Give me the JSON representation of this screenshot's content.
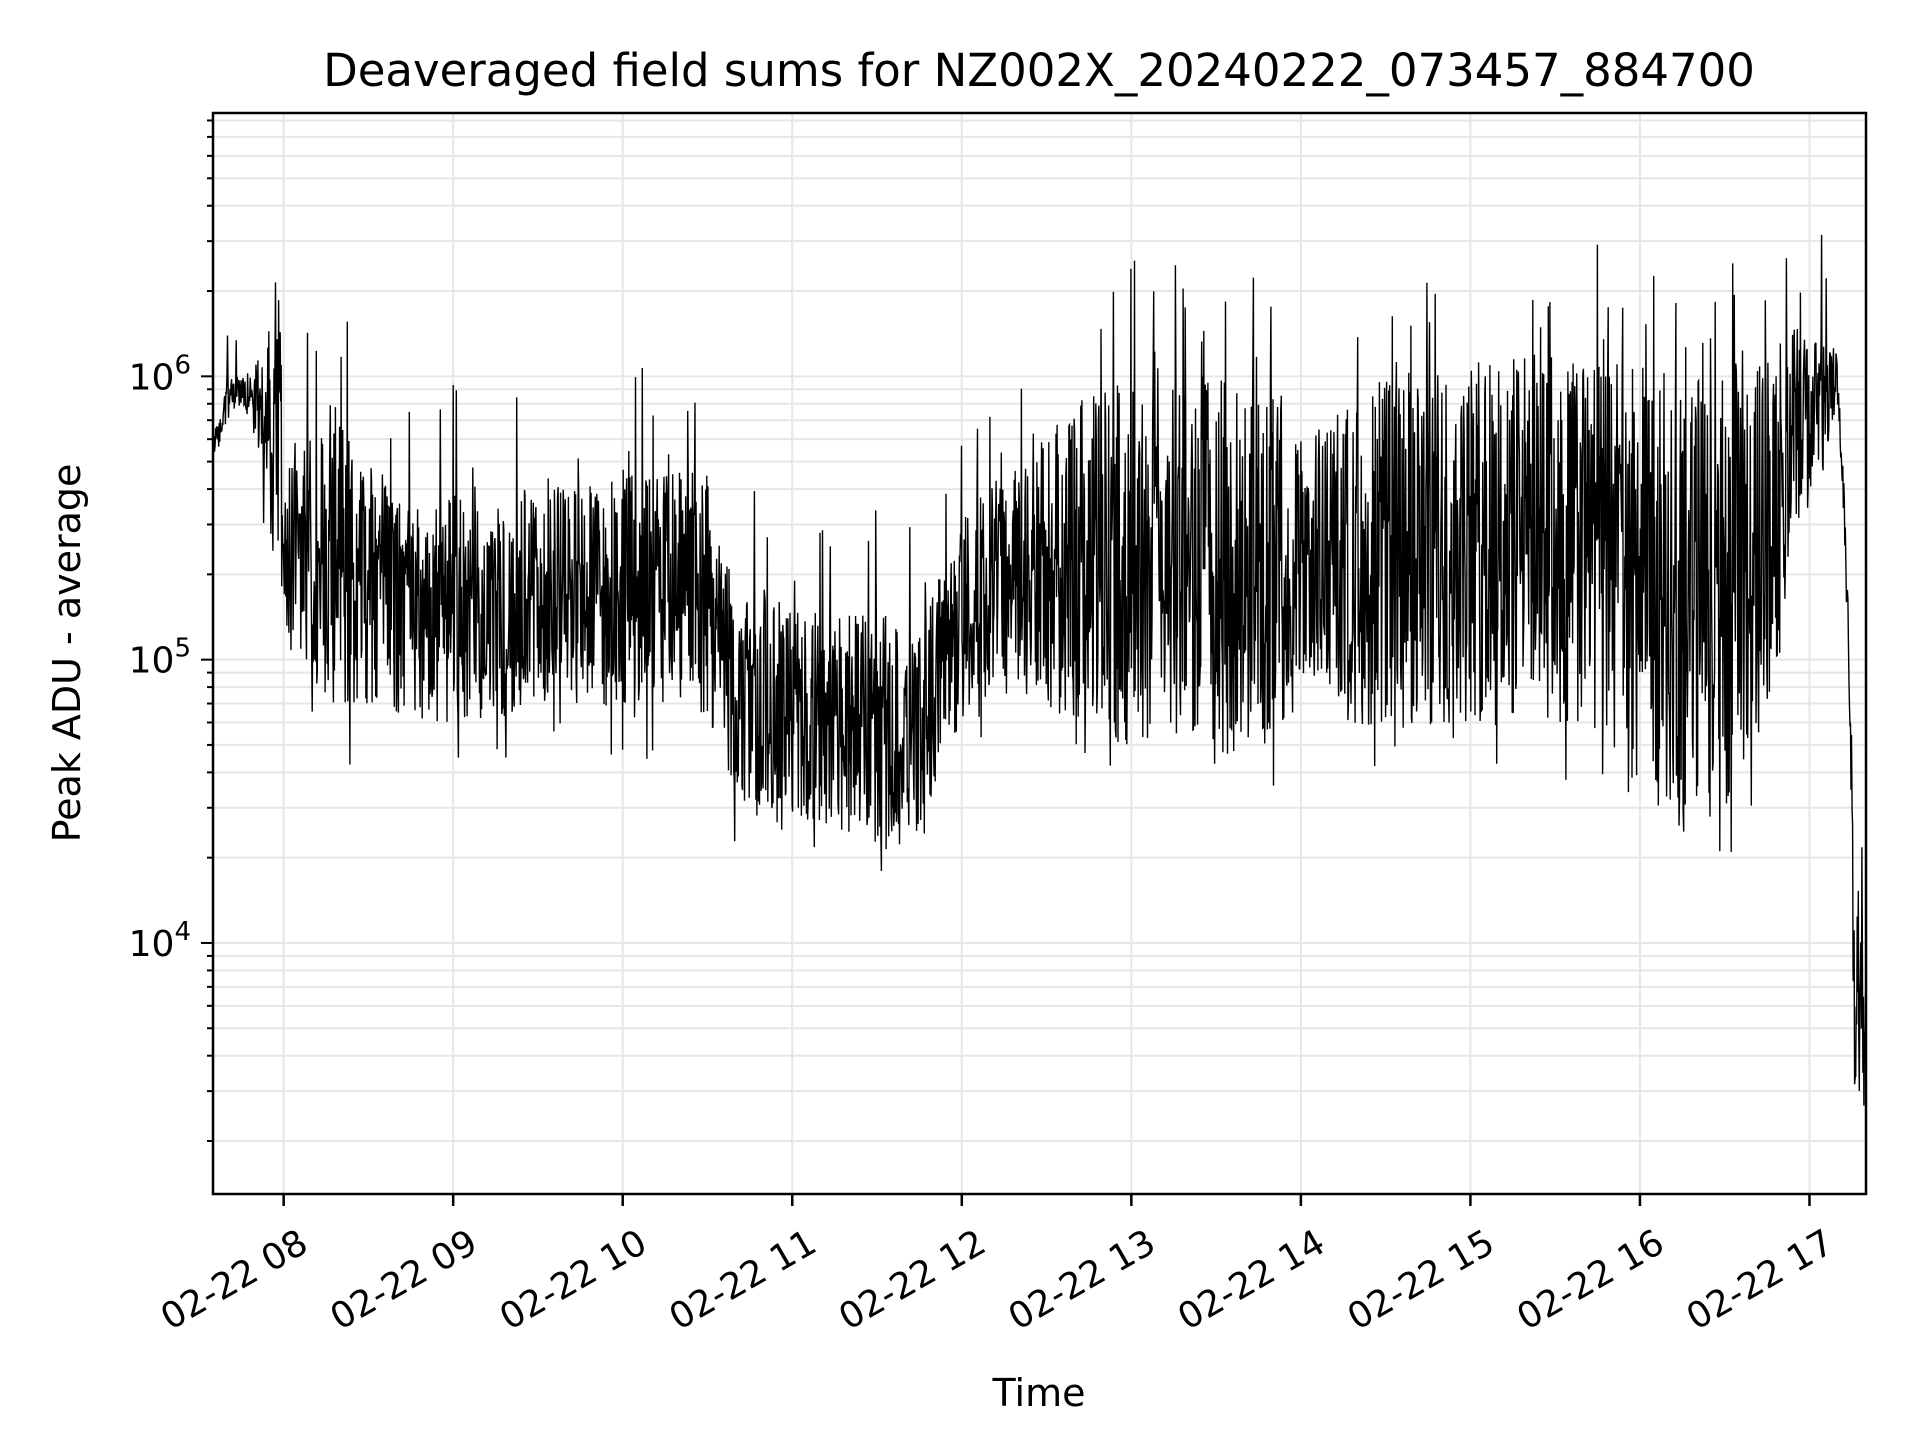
{
  "chart_data": {
    "type": "line",
    "title": "Deaveraged field sums for NZ002X_20240222_073457_884700",
    "xlabel": "Time",
    "ylabel": "Peak ADU - average",
    "yscale": "log",
    "xlim": [
      "2024-02-22 07:35",
      "2024-02-22 17:20"
    ],
    "ylim": [
      1300,
      8500000
    ],
    "x_tick_labels": [
      "02-22 08",
      "02-22 09",
      "02-22 10",
      "02-22 11",
      "02-22 12",
      "02-22 13",
      "02-22 14",
      "02-22 15",
      "02-22 16",
      "02-22 17"
    ],
    "y_tick_labels": [
      {
        "base": "10",
        "exp": "4",
        "value": 10000
      },
      {
        "base": "10",
        "exp": "5",
        "value": 100000
      },
      {
        "base": "10",
        "exp": "6",
        "value": 1000000
      }
    ],
    "grid": true,
    "line_color": "#000000",
    "series": [
      {
        "x": [
          "2024-02-22 07:35",
          "2024-02-22 07:40",
          "2024-02-22 07:45",
          "2024-02-22 07:50",
          "2024-02-22 07:55",
          "2024-02-22 07:58",
          "2024-02-22 08:00",
          "2024-02-22 08:10",
          "2024-02-22 08:20",
          "2024-02-22 08:30",
          "2024-02-22 08:40",
          "2024-02-22 08:50",
          "2024-02-22 09:00",
          "2024-02-22 09:15",
          "2024-02-22 09:30",
          "2024-02-22 09:45",
          "2024-02-22 10:00",
          "2024-02-22 10:15",
          "2024-02-22 10:30",
          "2024-02-22 10:40",
          "2024-02-22 10:50",
          "2024-02-22 11:00",
          "2024-02-22 11:15",
          "2024-02-22 11:30",
          "2024-02-22 11:45",
          "2024-02-22 11:55",
          "2024-02-22 12:05",
          "2024-02-22 12:20",
          "2024-02-22 12:35",
          "2024-02-22 12:50",
          "2024-02-22 13:05",
          "2024-02-22 13:20",
          "2024-02-22 13:35",
          "2024-02-22 13:50",
          "2024-02-22 14:00",
          "2024-02-22 14:15",
          "2024-02-22 14:30",
          "2024-02-22 14:45",
          "2024-02-22 15:00",
          "2024-02-22 15:15",
          "2024-02-22 15:30",
          "2024-02-22 15:45",
          "2024-02-22 16:00",
          "2024-02-22 16:15",
          "2024-02-22 16:30",
          "2024-02-22 16:45",
          "2024-02-22 16:55",
          "2024-02-22 17:05",
          "2024-02-22 17:10",
          "2024-02-22 17:13",
          "2024-02-22 17:16",
          "2024-02-22 17:20"
        ],
        "high": [
          600000,
          1000000,
          1000000,
          1100000,
          1800000,
          2400000,
          700000,
          600000,
          700000,
          500000,
          400000,
          300000,
          400000,
          350000,
          450000,
          400000,
          450000,
          450000,
          500000,
          150000,
          180000,
          160000,
          140000,
          150000,
          120000,
          250000,
          400000,
          500000,
          700000,
          900000,
          1100000,
          1000000,
          1000000,
          1100000,
          600000,
          800000,
          1000000,
          1100000,
          1150000,
          1200000,
          1250000,
          1200000,
          1100000,
          1050000,
          1000000,
          1200000,
          1500000,
          1400000,
          1200000,
          300000,
          20000,
          9000
        ],
        "low": [
          450000,
          700000,
          800000,
          600000,
          400000,
          250000,
          120000,
          80000,
          70000,
          70000,
          65000,
          60000,
          60000,
          60000,
          70000,
          70000,
          70000,
          70000,
          60000,
          35000,
          30000,
          28000,
          25000,
          22000,
          25000,
          50000,
          60000,
          70000,
          60000,
          50000,
          50000,
          55000,
          50000,
          50000,
          80000,
          60000,
          55000,
          55000,
          55000,
          55000,
          60000,
          55000,
          35000,
          25000,
          28000,
          60000,
          250000,
          500000,
          800000,
          200000,
          3000,
          2500
        ]
      }
    ]
  }
}
